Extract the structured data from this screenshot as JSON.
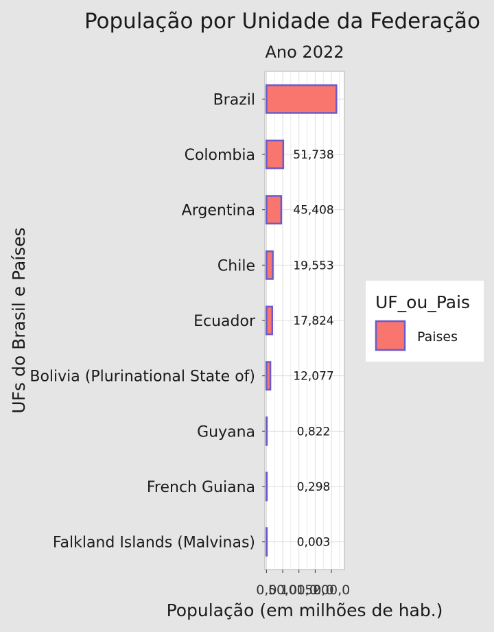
{
  "chart_data": {
    "type": "bar",
    "orientation": "horizontal",
    "title": "População por Unidade da Federação",
    "subtitle": "Ano 2022",
    "xlabel": "População (em milhões de hab.)",
    "ylabel": "UFs do Brasil e Países",
    "categories": [
      "Brazil",
      "Colombia",
      "Argentina",
      "Chile",
      "Ecuador",
      "Bolivia (Plurinational State of)",
      "Guyana",
      "French Guiana",
      "Falkland Islands (Malvinas)"
    ],
    "series": [
      {
        "name": "Paises",
        "values": [
          215.313,
          51.738,
          45.408,
          19.553,
          17.824,
          12.077,
          0.822,
          0.298,
          0.003
        ]
      }
    ],
    "data_labels": [
      "",
      "51,738",
      "45,408",
      "19,553",
      "17,824",
      "12,077",
      "0,822",
      "0,298",
      "0,003"
    ],
    "x_ticks": [
      0,
      50,
      100,
      150,
      200
    ],
    "x_tick_labels": [
      "0,0",
      "50,0",
      "100,0",
      "150,0",
      "200,0"
    ],
    "xlim": [
      -5,
      240
    ],
    "grid": true,
    "legend": {
      "title": "UF_ou_Pais",
      "position": "right"
    },
    "colors": {
      "fill": "#f8766d",
      "stroke": "#6a5acd",
      "panel": "#ffffff",
      "background": "#e5e5e5",
      "grid": "#dcdcdc"
    }
  }
}
